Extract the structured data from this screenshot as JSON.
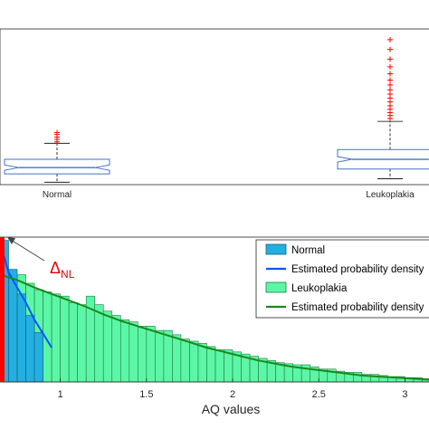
{
  "chart_data": [
    {
      "type": "box",
      "categories": [
        "Normal",
        "Leukoplakia"
      ],
      "ylim": [
        0,
        3.2
      ],
      "boxes": [
        {
          "category": "Normal",
          "whisker_low": 0.05,
          "q1": 0.22,
          "median": 0.35,
          "q3": 0.52,
          "whisker_high": 0.85,
          "outliers": [
            0.88,
            0.93,
            0.98,
            1.03,
            1.07
          ]
        },
        {
          "category": "Leukoplakia",
          "whisker_low": 0.12,
          "q1": 0.32,
          "median": 0.52,
          "q3": 0.72,
          "whisker_high": 1.3,
          "outliers": [
            1.36,
            1.42,
            1.48,
            1.55,
            1.62,
            1.7,
            1.78,
            1.86,
            1.95,
            2.05,
            2.15,
            2.28,
            2.42,
            2.58,
            2.78,
            2.98
          ]
        }
      ],
      "colors": {
        "box": "#4472c4",
        "median": "#4472c4",
        "whisker": "#000000",
        "outlier": "#ff0000"
      }
    },
    {
      "type": "histogram",
      "xlabel": "AQ values",
      "xlim": [
        0.65,
        3.15
      ],
      "ylim": [
        0,
        1.35
      ],
      "x_ticks": [
        "1",
        "1.5",
        "2",
        "2.5",
        "3"
      ],
      "bin_width": 0.05,
      "series": [
        {
          "name": "Normal",
          "kind": "bar",
          "color": "#22b0e0",
          "bins_start": 0.65,
          "values": [
            1.32,
            1.05,
            0.82,
            0.62,
            0.46
          ]
        },
        {
          "name": "Estimated probability density",
          "kind": "line",
          "color": "#0055ff",
          "points": [
            [
              0.65,
              1.3
            ],
            [
              0.7,
              1.02
            ],
            [
              0.75,
              0.88
            ],
            [
              0.8,
              0.74
            ],
            [
              0.85,
              0.58
            ],
            [
              0.9,
              0.45
            ],
            [
              0.95,
              0.32
            ]
          ]
        },
        {
          "name": "Leukoplakia",
          "kind": "bar",
          "color": "#5cf7a6",
          "bins_start": 0.65,
          "values": [
            1.02,
            0.95,
            1.0,
            0.92,
            0.86,
            0.84,
            0.82,
            0.8,
            0.74,
            0.72,
            0.8,
            0.72,
            0.66,
            0.62,
            0.58,
            0.56,
            0.52,
            0.52,
            0.48,
            0.48,
            0.44,
            0.4,
            0.38,
            0.36,
            0.33,
            0.3,
            0.3,
            0.28,
            0.26,
            0.24,
            0.22,
            0.2,
            0.18,
            0.17,
            0.16,
            0.16,
            0.14,
            0.12,
            0.12,
            0.1,
            0.09,
            0.09,
            0.07,
            0.07,
            0.06,
            0.05,
            0.05,
            0.04,
            0.04,
            0.03
          ]
        },
        {
          "name": "Estimated probability density",
          "kind": "line",
          "color": "#1a8a1a",
          "points": [
            [
              0.65,
              1.0
            ],
            [
              0.75,
              0.95
            ],
            [
              0.85,
              0.88
            ],
            [
              0.95,
              0.82
            ],
            [
              1.05,
              0.76
            ],
            [
              1.15,
              0.7
            ],
            [
              1.25,
              0.63
            ],
            [
              1.35,
              0.57
            ],
            [
              1.45,
              0.52
            ],
            [
              1.55,
              0.47
            ],
            [
              1.65,
              0.42
            ],
            [
              1.75,
              0.37
            ],
            [
              1.85,
              0.32
            ],
            [
              1.95,
              0.28
            ],
            [
              2.05,
              0.24
            ],
            [
              2.15,
              0.2
            ],
            [
              2.25,
              0.17
            ],
            [
              2.35,
              0.14
            ],
            [
              2.45,
              0.12
            ],
            [
              2.55,
              0.1
            ],
            [
              2.65,
              0.08
            ],
            [
              2.75,
              0.06
            ],
            [
              2.85,
              0.05
            ],
            [
              2.95,
              0.04
            ],
            [
              3.05,
              0.03
            ],
            [
              3.15,
              0.02
            ]
          ]
        }
      ],
      "annotation": {
        "symbol": "Δ",
        "subscript": "NL",
        "color": "#e00000",
        "marker_x": 0.65,
        "marker_height": 1.35
      },
      "legend_position": "top-right"
    }
  ]
}
